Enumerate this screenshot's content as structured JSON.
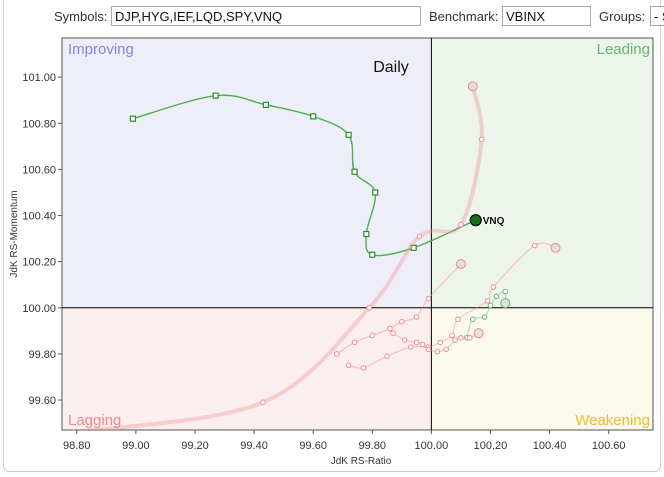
{
  "toolbar": {
    "symbols_label": "Symbols:",
    "symbols_value": "DJP,HYG,IEF,LQD,SPY,VNQ",
    "benchmark_label": "Benchmark:",
    "benchmark_value": "VBINX",
    "groups_label": "Groups:",
    "groups_value": "- S"
  },
  "chart_data": {
    "type": "scatter",
    "title": "Daily",
    "xlabel": "JdK RS-Ratio",
    "ylabel": "JdK RS-Momentum",
    "xlim": [
      98.75,
      100.75
    ],
    "ylim": [
      99.47,
      101.17
    ],
    "xticks": [
      98.8,
      99.0,
      99.2,
      99.4,
      99.6,
      99.8,
      100.0,
      100.2,
      100.4,
      100.6
    ],
    "yticks": [
      99.6,
      99.8,
      100.0,
      100.2,
      100.4,
      100.6,
      100.8,
      101.0
    ],
    "center": [
      100.0,
      100.0
    ],
    "grid": false,
    "quadrants": [
      {
        "label": "Improving",
        "color": "#7f84e0",
        "fill": "#eeeef8"
      },
      {
        "label": "Leading",
        "color": "#66b866",
        "fill": "#ecf4ec"
      },
      {
        "label": "Lagging",
        "color": "#f08a8a",
        "fill": "#fbeeee"
      },
      {
        "label": "Weakening",
        "color": "#e8c030",
        "fill": "#fbf8ec"
      }
    ],
    "series": [
      {
        "name": "VNQ",
        "color": "#4caf50",
        "labeled": true,
        "points": [
          [
            98.99,
            100.82
          ],
          [
            99.27,
            100.92
          ],
          [
            99.44,
            100.88
          ],
          [
            99.6,
            100.83
          ],
          [
            99.72,
            100.75
          ],
          [
            99.74,
            100.59
          ],
          [
            99.81,
            100.5
          ],
          [
            99.78,
            100.32
          ],
          [
            99.8,
            100.23
          ],
          [
            99.94,
            100.26
          ],
          [
            100.15,
            100.38
          ]
        ]
      },
      {
        "name": "SPY",
        "color": "#66bb6a",
        "labeled": false,
        "points": [
          [
            100.12,
            99.87
          ],
          [
            100.14,
            99.95
          ],
          [
            100.18,
            99.96
          ],
          [
            100.2,
            100.01
          ],
          [
            100.22,
            100.05
          ],
          [
            100.25,
            100.07
          ],
          [
            100.25,
            100.02
          ]
        ]
      },
      {
        "name": "IEF",
        "color": "#f28b8b",
        "labeled": false,
        "points": [
          [
            98.79,
            99.46
          ],
          [
            99.43,
            99.59
          ],
          [
            99.79,
            100.0
          ],
          [
            99.96,
            100.31
          ],
          [
            100.1,
            100.36
          ],
          [
            100.17,
            100.73
          ],
          [
            100.14,
            100.96
          ]
        ]
      },
      {
        "name": "HYG",
        "color": "#f28b8b",
        "labeled": false,
        "points": [
          [
            99.72,
            99.75
          ],
          [
            99.77,
            99.74
          ],
          [
            99.85,
            99.79
          ],
          [
            99.93,
            99.83
          ],
          [
            99.99,
            99.83
          ],
          [
            100.03,
            99.85
          ],
          [
            100.07,
            99.88
          ],
          [
            100.09,
            99.95
          ],
          [
            100.19,
            100.03
          ],
          [
            100.21,
            100.09
          ],
          [
            100.35,
            100.27
          ],
          [
            100.42,
            100.26
          ]
        ]
      },
      {
        "name": "LQD",
        "color": "#f28b8b",
        "labeled": false,
        "points": [
          [
            99.68,
            99.8
          ],
          [
            99.74,
            99.85
          ],
          [
            99.8,
            99.88
          ],
          [
            99.86,
            99.91
          ],
          [
            99.9,
            99.94
          ],
          [
            99.95,
            99.96
          ],
          [
            99.99,
            100.04
          ],
          [
            100.1,
            100.19
          ]
        ]
      },
      {
        "name": "DJP",
        "color": "#f28b8b",
        "labeled": false,
        "points": [
          [
            99.87,
            99.89
          ],
          [
            99.91,
            99.86
          ],
          [
            99.95,
            99.85
          ],
          [
            99.97,
            99.84
          ],
          [
            99.99,
            99.82
          ],
          [
            100.02,
            99.81
          ],
          [
            100.05,
            99.82
          ],
          [
            100.08,
            99.86
          ],
          [
            100.1,
            99.87
          ],
          [
            100.13,
            99.87
          ],
          [
            100.16,
            99.89
          ]
        ]
      }
    ]
  }
}
